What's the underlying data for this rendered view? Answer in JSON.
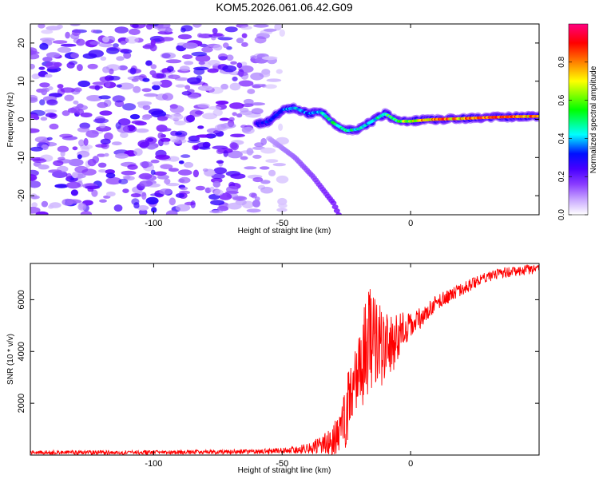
{
  "figure_title": "KOM5.2026.061.06.42.G09",
  "chart_data": [
    {
      "type": "heatmap",
      "title": "KOM5.2026.061.06.42.G09",
      "xlabel": "Height of straight line (km)",
      "ylabel": "Frequency (Hz)",
      "xlim": [
        -148,
        50
      ],
      "ylim": [
        -25,
        25
      ],
      "x_ticks": [
        -100,
        -50,
        0
      ],
      "x_tick_labels": [
        "-100",
        "-50",
        "0"
      ],
      "y_ticks": [
        -20,
        -10,
        0,
        10,
        20
      ],
      "y_tick_labels": [
        "-20",
        "-10",
        "0",
        "10",
        "20"
      ],
      "colorbar": {
        "label": "Normalized spectral amplitude",
        "range": [
          0,
          1
        ],
        "ticks": [
          0.0,
          0.2,
          0.4,
          0.6,
          0.8
        ],
        "tick_labels": [
          "0.0",
          "0.2",
          "0.4",
          "0.6",
          "0.8"
        ],
        "colormap": [
          "#ffffff",
          "#a678ff",
          "#6a00ff",
          "#0000ff",
          "#00ffff",
          "#00ff00",
          "#ffff00",
          "#ff8000",
          "#ff0000",
          "#ff0080"
        ]
      },
      "ridge": {
        "x": [
          -60,
          -55,
          -50,
          -45,
          -40,
          -35,
          -30,
          -25,
          -20,
          -15,
          -10,
          -5,
          0,
          5,
          10,
          20,
          30,
          40,
          50
        ],
        "frequency": [
          -1.2,
          -0.5,
          2.5,
          3.0,
          1.5,
          2.0,
          -1.0,
          -3.0,
          -2.5,
          -0.5,
          1.5,
          -0.5,
          -0.5,
          -0.2,
          0.0,
          0.2,
          0.5,
          0.7,
          0.8
        ],
        "amplitude": [
          0.3,
          0.35,
          0.4,
          0.45,
          0.4,
          0.45,
          0.5,
          0.55,
          0.5,
          0.45,
          0.55,
          0.6,
          0.65,
          0.8,
          0.85,
          0.8,
          0.9,
          0.85,
          0.8
        ]
      },
      "diagonal_streak": {
        "x": [
          -55,
          -45,
          -38,
          -30,
          -28
        ],
        "frequency": [
          -5,
          -10,
          -15,
          -22,
          -25
        ]
      },
      "noise_region": {
        "x_range": [
          -148,
          -55
        ],
        "frequency_range": [
          -25,
          25
        ],
        "amplitude_range": [
          0.05,
          0.3
        ]
      }
    },
    {
      "type": "line",
      "xlabel": "Height of straight line (km)",
      "ylabel": "SNR (10 * v/v)",
      "xlim": [
        -148,
        50
      ],
      "ylim": [
        0,
        7400
      ],
      "x_ticks": [
        -100,
        -50,
        0
      ],
      "x_tick_labels": [
        "-100",
        "-50",
        "0"
      ],
      "y_ticks": [
        2000,
        4000,
        6000
      ],
      "y_tick_labels": [
        "2000",
        "4000",
        "6000"
      ],
      "color": "#ff0000",
      "series": [
        {
          "name": "SNR",
          "x": [
            -148,
            -120,
            -90,
            -60,
            -50,
            -45,
            -40,
            -35,
            -30,
            -27,
            -25,
            -22,
            -20,
            -18,
            -16,
            -14,
            -12,
            -10,
            -8,
            -5,
            -2,
            0,
            5,
            10,
            20,
            30,
            40,
            50
          ],
          "y": [
            100,
            100,
            110,
            130,
            170,
            200,
            260,
            380,
            600,
            900,
            1700,
            2800,
            3500,
            4000,
            4500,
            4300,
            4200,
            4000,
            4200,
            4500,
            5000,
            5000,
            5400,
            5900,
            6400,
            6900,
            7100,
            7200
          ],
          "noise": [
            80,
            80,
            80,
            90,
            110,
            140,
            200,
            350,
            600,
            900,
            1400,
            1700,
            1900,
            2000,
            2000,
            1900,
            1800,
            1600,
            1300,
            900,
            700,
            500,
            380,
            300,
            250,
            220,
            200,
            200
          ]
        }
      ]
    }
  ]
}
